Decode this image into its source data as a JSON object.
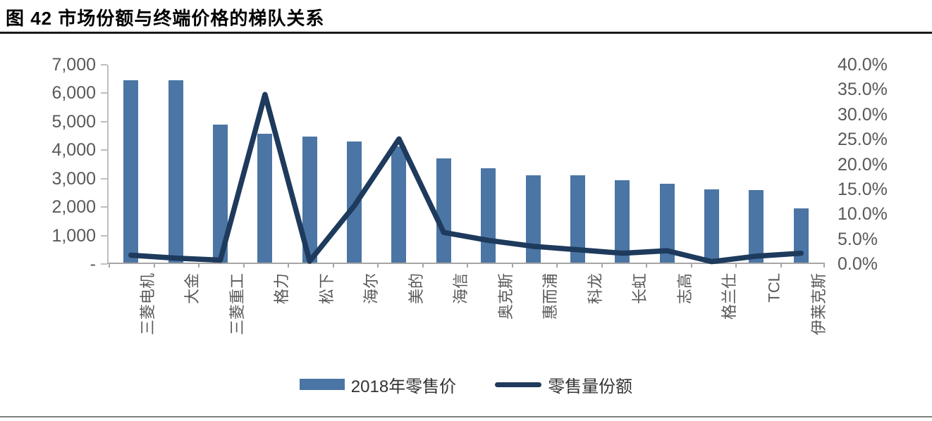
{
  "figure": {
    "label": "图 42",
    "title": "市场份额与终端价格的梯队关系"
  },
  "chart_data": {
    "type": "bar",
    "subtype": "bar+line combo, dual axis",
    "title": "图 42 市场份额与终端价格的梯队关系",
    "categories": [
      "三菱电机",
      "大金",
      "三菱重工",
      "格力",
      "松下",
      "海尔",
      "美的",
      "海信",
      "奥克斯",
      "惠而浦",
      "科龙",
      "长虹",
      "志高",
      "格兰仕",
      "TCL",
      "伊莱克斯"
    ],
    "series": [
      {
        "name": "2018年零售价",
        "type": "bar",
        "axis": "left",
        "color": "#4b75a4",
        "values": [
          6400,
          6400,
          4850,
          4520,
          4430,
          4260,
          4080,
          3660,
          3310,
          3060,
          3060,
          2890,
          2770,
          2570,
          2550,
          1900
        ]
      },
      {
        "name": "零售量份额",
        "type": "line",
        "axis": "right",
        "color": "#1e3a5c",
        "values_percent": [
          1.5,
          0.9,
          0.5,
          34.0,
          0.3,
          11.5,
          25.0,
          6.1,
          4.5,
          3.3,
          2.6,
          1.9,
          2.4,
          0.2,
          1.3,
          1.9
        ]
      }
    ],
    "left_axis": {
      "min": 0,
      "max": 7000,
      "ticks": [
        "7,000",
        "6,000",
        "5,000",
        "4,000",
        "3,000",
        "2,000",
        "1,000",
        "-"
      ]
    },
    "right_axis": {
      "min_percent": 0,
      "max_percent": 40,
      "ticks": [
        "40.0%",
        "35.0%",
        "30.0%",
        "25.0%",
        "20.0%",
        "15.0%",
        "10.0%",
        "5.0%",
        "0.0%"
      ]
    },
    "grid": false,
    "legend_position": "bottom"
  },
  "colors": {
    "bar": "#4b75a4",
    "line": "#1e3a5c",
    "axis": "#bfbfbf",
    "axis_bottom": "#a6a6a6",
    "tick_text": "#595959",
    "title_text": "#000000"
  }
}
